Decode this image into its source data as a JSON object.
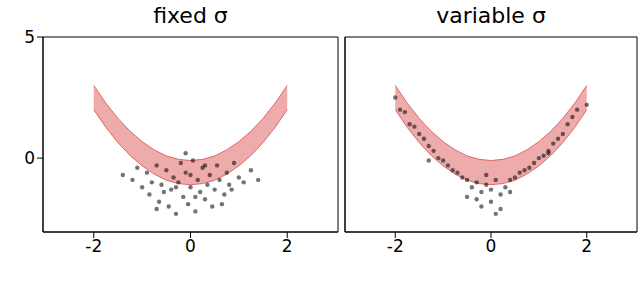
{
  "chart_data": [
    {
      "type": "scatter",
      "title": "fixed σ",
      "xlim": [
        -3.05,
        3.05
      ],
      "ylim": [
        -3.05,
        5
      ],
      "xticks": [
        -2,
        0,
        2
      ],
      "yticks": [
        0,
        5
      ],
      "tick_labels": true,
      "color": "#000000",
      "marker": "circle",
      "band": {
        "color": "#e06666",
        "x": [
          -2,
          -1.75,
          -1.5,
          -1.25,
          -1,
          -0.75,
          -0.5,
          -0.25,
          0,
          0.25,
          0.5,
          0.75,
          1,
          1.25,
          1.5,
          1.75,
          2
        ],
        "upper": [
          3.0,
          2.27,
          1.64,
          1.11,
          0.68,
          0.34,
          0.09,
          -0.05,
          -0.1,
          -0.05,
          0.09,
          0.34,
          0.68,
          1.11,
          1.64,
          2.27,
          3.0
        ],
        "lower": [
          2.0,
          1.27,
          0.64,
          0.11,
          -0.32,
          -0.66,
          -0.91,
          -1.05,
          -1.1,
          -1.05,
          -0.91,
          -0.66,
          -0.32,
          0.11,
          0.64,
          1.27,
          2.0
        ]
      },
      "x": [
        -1.4,
        -1.2,
        -1.1,
        -1.0,
        -0.9,
        -0.85,
        -0.8,
        -0.7,
        -0.65,
        -0.6,
        -0.5,
        -0.45,
        -0.4,
        -0.35,
        -0.3,
        -0.25,
        -0.2,
        -0.15,
        -0.1,
        -0.05,
        0,
        0.05,
        0.1,
        0.15,
        0.2,
        0.25,
        0.3,
        0.35,
        0.4,
        0.45,
        0.5,
        0.55,
        0.6,
        0.7,
        0.75,
        0.8,
        0.9,
        1.0,
        1.1,
        1.25,
        -0.55,
        0.65,
        -0.3,
        0.3,
        0.1,
        -0.1,
        0,
        -0.7,
        0.85,
        1.4
      ],
      "y": [
        -0.7,
        -0.9,
        -0.4,
        -1.2,
        -0.6,
        -1.5,
        -1.0,
        -0.3,
        -1.8,
        -1.1,
        -0.5,
        -2.0,
        -1.3,
        -0.8,
        -2.3,
        -1.0,
        -0.2,
        -1.6,
        -0.6,
        -1.9,
        -1.2,
        -0.1,
        -2.2,
        -0.9,
        -1.4,
        -0.4,
        -1.7,
        -1.1,
        -0.7,
        -2.0,
        -1.3,
        -0.3,
        -0.9,
        -1.5,
        -0.6,
        -1.1,
        -0.2,
        -0.8,
        -1.0,
        -0.5,
        -1.4,
        -1.9,
        -1.2,
        -0.3,
        -1.6,
        0.2,
        -0.7,
        -2.1,
        -1.3,
        -0.9
      ]
    },
    {
      "type": "scatter",
      "title": "variable σ",
      "xlim": [
        -3.05,
        3.05
      ],
      "ylim": [
        -3.05,
        5
      ],
      "xticks": [
        -2,
        0,
        2
      ],
      "yticks": [
        0,
        5
      ],
      "tick_labels": "x",
      "color": "#000000",
      "marker": "circle",
      "band": {
        "color": "#e06666",
        "x": [
          -2,
          -1.75,
          -1.5,
          -1.25,
          -1,
          -0.75,
          -0.5,
          -0.25,
          0,
          0.25,
          0.5,
          0.75,
          1,
          1.25,
          1.5,
          1.75,
          2
        ],
        "upper": [
          3.0,
          2.27,
          1.64,
          1.11,
          0.68,
          0.34,
          0.09,
          -0.05,
          -0.1,
          -0.05,
          0.09,
          0.34,
          0.68,
          1.11,
          1.64,
          2.27,
          3.0
        ],
        "lower": [
          2.0,
          1.27,
          0.64,
          0.11,
          -0.32,
          -0.66,
          -0.91,
          -1.05,
          -1.1,
          -1.05,
          -0.91,
          -0.66,
          -0.32,
          0.11,
          0.64,
          1.27,
          2.0
        ]
      },
      "x": [
        -2.0,
        -1.9,
        -1.8,
        -1.7,
        -1.6,
        -1.5,
        -1.4,
        -1.3,
        -1.2,
        -1.1,
        -1.0,
        -0.9,
        -0.8,
        -0.7,
        -0.6,
        -0.5,
        -0.4,
        -0.3,
        -0.2,
        -0.1,
        0,
        0.1,
        0.2,
        0.3,
        0.4,
        0.5,
        0.6,
        0.7,
        0.8,
        0.9,
        1.0,
        1.1,
        1.2,
        1.3,
        1.4,
        1.5,
        1.6,
        1.7,
        1.8,
        2.0,
        -0.5,
        -0.2,
        0,
        0.2,
        0.4,
        -0.3,
        0.1,
        -1.3,
        1.2,
        -0.1
      ],
      "y": [
        2.5,
        2.0,
        1.9,
        1.4,
        1.3,
        1.0,
        0.8,
        0.5,
        0.3,
        0.0,
        -0.1,
        -0.3,
        -0.5,
        -0.6,
        -0.8,
        -0.9,
        -1.2,
        -1.0,
        -1.4,
        -1.1,
        -1.3,
        -0.9,
        -1.5,
        -1.2,
        -0.9,
        -0.8,
        -0.6,
        -0.5,
        -0.4,
        -0.2,
        0.0,
        0.1,
        0.3,
        0.6,
        0.8,
        1.0,
        1.4,
        1.7,
        2.0,
        2.2,
        -1.6,
        -2.0,
        -1.8,
        -2.1,
        -1.4,
        -1.7,
        -2.3,
        -0.1,
        0.2,
        -0.7
      ]
    }
  ]
}
